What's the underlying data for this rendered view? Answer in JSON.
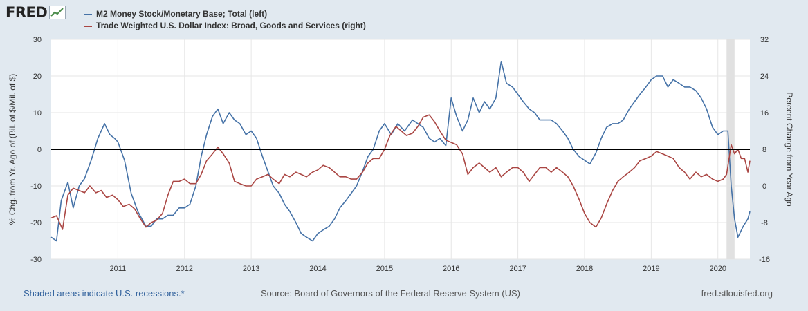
{
  "logo": {
    "text": "FRED",
    "icon": "fred-chart-icon"
  },
  "footer": {
    "recession_note": "Shaded areas indicate U.S. recessions.*",
    "source": "Source: Board of Governors of the Federal Reserve System (US)",
    "site": "fred.stlouisfed.org"
  },
  "chart_data": {
    "type": "line",
    "xlim": [
      2010.0,
      2020.48
    ],
    "x_ticks": [
      {
        "v": 2011,
        "label": "2011"
      },
      {
        "v": 2012,
        "label": "2012"
      },
      {
        "v": 2013,
        "label": "2013"
      },
      {
        "v": 2014,
        "label": "2014"
      },
      {
        "v": 2015,
        "label": "2015"
      },
      {
        "v": 2016,
        "label": "2016"
      },
      {
        "v": 2017,
        "label": "2017"
      },
      {
        "v": 2018,
        "label": "2018"
      },
      {
        "v": 2019,
        "label": "2019"
      },
      {
        "v": 2020,
        "label": "2020"
      }
    ],
    "left_axis": {
      "label": "% Chg. from Yr. Ago of (Bil. of $/Mil. of $)",
      "ylim": [
        -30,
        30
      ],
      "ticks": [
        {
          "v": 30,
          "label": "30"
        },
        {
          "v": 20,
          "label": "20"
        },
        {
          "v": 10,
          "label": "10"
        },
        {
          "v": 0,
          "label": "0"
        },
        {
          "v": -10,
          "label": "-10"
        },
        {
          "v": -20,
          "label": "-20"
        },
        {
          "v": -30,
          "label": "-30"
        }
      ]
    },
    "right_axis": {
      "label": "Percent Change from Year Ago",
      "ylim": [
        -16,
        32
      ],
      "ticks": [
        {
          "v": 32,
          "label": "32"
        },
        {
          "v": 24,
          "label": "24"
        },
        {
          "v": 16,
          "label": "16"
        },
        {
          "v": 8,
          "label": "8"
        },
        {
          "v": 0,
          "label": "0"
        },
        {
          "v": -8,
          "label": "-8"
        },
        {
          "v": -16,
          "label": "-16"
        }
      ]
    },
    "zero_line": 0,
    "recession_shading": [
      [
        2020.13,
        2020.25
      ]
    ],
    "grid": true,
    "series": [
      {
        "name": "M2 Money Stock/Monetary Base; Total (left)",
        "axis": "left",
        "color": "#4572a7",
        "points": [
          [
            2010.0,
            -24
          ],
          [
            2010.08,
            -25
          ],
          [
            2010.15,
            -14
          ],
          [
            2010.25,
            -9
          ],
          [
            2010.33,
            -16
          ],
          [
            2010.42,
            -10
          ],
          [
            2010.5,
            -8
          ],
          [
            2010.6,
            -3
          ],
          [
            2010.7,
            3
          ],
          [
            2010.8,
            7
          ],
          [
            2010.88,
            4
          ],
          [
            2010.95,
            3
          ],
          [
            2011.0,
            2
          ],
          [
            2011.1,
            -3
          ],
          [
            2011.2,
            -12
          ],
          [
            2011.3,
            -17
          ],
          [
            2011.42,
            -21
          ],
          [
            2011.5,
            -21
          ],
          [
            2011.58,
            -19
          ],
          [
            2011.67,
            -19
          ],
          [
            2011.75,
            -18
          ],
          [
            2011.83,
            -18
          ],
          [
            2011.92,
            -16
          ],
          [
            2012.0,
            -16
          ],
          [
            2012.08,
            -15
          ],
          [
            2012.17,
            -10
          ],
          [
            2012.25,
            -2
          ],
          [
            2012.33,
            4
          ],
          [
            2012.42,
            9
          ],
          [
            2012.5,
            11
          ],
          [
            2012.58,
            7
          ],
          [
            2012.67,
            10
          ],
          [
            2012.75,
            8
          ],
          [
            2012.83,
            7
          ],
          [
            2012.92,
            4
          ],
          [
            2013.0,
            5
          ],
          [
            2013.08,
            3
          ],
          [
            2013.17,
            -2
          ],
          [
            2013.25,
            -6
          ],
          [
            2013.33,
            -10
          ],
          [
            2013.42,
            -12
          ],
          [
            2013.5,
            -15
          ],
          [
            2013.58,
            -17
          ],
          [
            2013.67,
            -20
          ],
          [
            2013.75,
            -23
          ],
          [
            2013.83,
            -24
          ],
          [
            2013.92,
            -25
          ],
          [
            2014.0,
            -23
          ],
          [
            2014.08,
            -22
          ],
          [
            2014.17,
            -21
          ],
          [
            2014.25,
            -19
          ],
          [
            2014.33,
            -16
          ],
          [
            2014.42,
            -14
          ],
          [
            2014.5,
            -12
          ],
          [
            2014.58,
            -10
          ],
          [
            2014.67,
            -6
          ],
          [
            2014.75,
            -2
          ],
          [
            2014.83,
            0
          ],
          [
            2014.92,
            5
          ],
          [
            2015.0,
            7
          ],
          [
            2015.1,
            4
          ],
          [
            2015.2,
            7
          ],
          [
            2015.3,
            5
          ],
          [
            2015.42,
            8
          ],
          [
            2015.5,
            7
          ],
          [
            2015.58,
            6
          ],
          [
            2015.67,
            3
          ],
          [
            2015.75,
            2
          ],
          [
            2015.83,
            3
          ],
          [
            2015.92,
            1
          ],
          [
            2016.0,
            14
          ],
          [
            2016.08,
            9
          ],
          [
            2016.17,
            5
          ],
          [
            2016.25,
            8
          ],
          [
            2016.33,
            14
          ],
          [
            2016.42,
            10
          ],
          [
            2016.5,
            13
          ],
          [
            2016.58,
            11
          ],
          [
            2016.67,
            14
          ],
          [
            2016.75,
            24
          ],
          [
            2016.83,
            18
          ],
          [
            2016.92,
            17
          ],
          [
            2017.0,
            15
          ],
          [
            2017.08,
            13
          ],
          [
            2017.17,
            11
          ],
          [
            2017.25,
            10
          ],
          [
            2017.33,
            8
          ],
          [
            2017.42,
            8
          ],
          [
            2017.5,
            8
          ],
          [
            2017.58,
            7
          ],
          [
            2017.67,
            5
          ],
          [
            2017.75,
            3
          ],
          [
            2017.83,
            0
          ],
          [
            2017.92,
            -2
          ],
          [
            2018.0,
            -3
          ],
          [
            2018.08,
            -4
          ],
          [
            2018.17,
            -1
          ],
          [
            2018.25,
            3
          ],
          [
            2018.33,
            6
          ],
          [
            2018.42,
            7
          ],
          [
            2018.5,
            7
          ],
          [
            2018.58,
            8
          ],
          [
            2018.67,
            11
          ],
          [
            2018.75,
            13
          ],
          [
            2018.83,
            15
          ],
          [
            2018.92,
            17
          ],
          [
            2019.0,
            19
          ],
          [
            2019.08,
            20
          ],
          [
            2019.17,
            20
          ],
          [
            2019.25,
            17
          ],
          [
            2019.33,
            19
          ],
          [
            2019.42,
            18
          ],
          [
            2019.5,
            17
          ],
          [
            2019.58,
            17
          ],
          [
            2019.67,
            16
          ],
          [
            2019.75,
            14
          ],
          [
            2019.83,
            11
          ],
          [
            2019.92,
            6
          ],
          [
            2020.0,
            4
          ],
          [
            2020.08,
            5
          ],
          [
            2020.15,
            5
          ],
          [
            2020.2,
            -10
          ],
          [
            2020.25,
            -19
          ],
          [
            2020.3,
            -24
          ],
          [
            2020.38,
            -21
          ],
          [
            2020.45,
            -19
          ],
          [
            2020.48,
            -17
          ]
        ]
      },
      {
        "name": "Trade Weighted U.S. Dollar Index: Broad, Goods and Services (right)",
        "axis": "right",
        "color": "#aa4643",
        "points": [
          [
            2010.0,
            -7
          ],
          [
            2010.08,
            -6.5
          ],
          [
            2010.17,
            -9.5
          ],
          [
            2010.25,
            -2
          ],
          [
            2010.33,
            -0.5
          ],
          [
            2010.42,
            -1
          ],
          [
            2010.5,
            -1.5
          ],
          [
            2010.58,
            0
          ],
          [
            2010.67,
            -1.5
          ],
          [
            2010.75,
            -1
          ],
          [
            2010.83,
            -2.5
          ],
          [
            2010.92,
            -2
          ],
          [
            2011.0,
            -3
          ],
          [
            2011.08,
            -4.5
          ],
          [
            2011.17,
            -4
          ],
          [
            2011.25,
            -5
          ],
          [
            2011.33,
            -7
          ],
          [
            2011.42,
            -9
          ],
          [
            2011.5,
            -8
          ],
          [
            2011.58,
            -7.5
          ],
          [
            2011.67,
            -6
          ],
          [
            2011.75,
            -2
          ],
          [
            2011.83,
            1
          ],
          [
            2011.92,
            1
          ],
          [
            2012.0,
            1.5
          ],
          [
            2012.08,
            0.5
          ],
          [
            2012.17,
            0.5
          ],
          [
            2012.25,
            2.5
          ],
          [
            2012.33,
            5.5
          ],
          [
            2012.42,
            7
          ],
          [
            2012.5,
            8.5
          ],
          [
            2012.58,
            7
          ],
          [
            2012.67,
            5
          ],
          [
            2012.75,
            1
          ],
          [
            2012.83,
            0.5
          ],
          [
            2012.92,
            0
          ],
          [
            2013.0,
            0
          ],
          [
            2013.08,
            1.5
          ],
          [
            2013.17,
            2
          ],
          [
            2013.25,
            2.5
          ],
          [
            2013.33,
            1.5
          ],
          [
            2013.42,
            0.5
          ],
          [
            2013.5,
            2.5
          ],
          [
            2013.58,
            2
          ],
          [
            2013.67,
            3
          ],
          [
            2013.75,
            2.5
          ],
          [
            2013.83,
            2
          ],
          [
            2013.92,
            3
          ],
          [
            2014.0,
            3.5
          ],
          [
            2014.08,
            4.5
          ],
          [
            2014.17,
            4
          ],
          [
            2014.25,
            3
          ],
          [
            2014.33,
            2
          ],
          [
            2014.42,
            2
          ],
          [
            2014.5,
            1.5
          ],
          [
            2014.58,
            1.5
          ],
          [
            2014.67,
            3
          ],
          [
            2014.75,
            5
          ],
          [
            2014.83,
            6
          ],
          [
            2014.92,
            6
          ],
          [
            2015.0,
            8
          ],
          [
            2015.08,
            11
          ],
          [
            2015.17,
            13
          ],
          [
            2015.25,
            12
          ],
          [
            2015.33,
            11
          ],
          [
            2015.42,
            11.5
          ],
          [
            2015.5,
            13
          ],
          [
            2015.58,
            15
          ],
          [
            2015.67,
            15.5
          ],
          [
            2015.75,
            14
          ],
          [
            2015.83,
            12
          ],
          [
            2015.92,
            10
          ],
          [
            2016.0,
            9.5
          ],
          [
            2016.08,
            9
          ],
          [
            2016.17,
            7
          ],
          [
            2016.25,
            2.5
          ],
          [
            2016.33,
            4
          ],
          [
            2016.42,
            5
          ],
          [
            2016.5,
            4
          ],
          [
            2016.58,
            3
          ],
          [
            2016.67,
            4
          ],
          [
            2016.75,
            2
          ],
          [
            2016.83,
            3
          ],
          [
            2016.92,
            4
          ],
          [
            2017.0,
            4
          ],
          [
            2017.08,
            3
          ],
          [
            2017.17,
            1
          ],
          [
            2017.25,
            2.5
          ],
          [
            2017.33,
            4
          ],
          [
            2017.42,
            4
          ],
          [
            2017.5,
            3
          ],
          [
            2017.58,
            4
          ],
          [
            2017.67,
            3
          ],
          [
            2017.75,
            2
          ],
          [
            2017.83,
            0
          ],
          [
            2017.92,
            -3
          ],
          [
            2018.0,
            -6
          ],
          [
            2018.08,
            -8
          ],
          [
            2018.17,
            -9
          ],
          [
            2018.25,
            -7
          ],
          [
            2018.33,
            -4
          ],
          [
            2018.42,
            -1
          ],
          [
            2018.5,
            1
          ],
          [
            2018.58,
            2
          ],
          [
            2018.67,
            3
          ],
          [
            2018.75,
            4
          ],
          [
            2018.83,
            5.5
          ],
          [
            2018.92,
            6
          ],
          [
            2019.0,
            6.5
          ],
          [
            2019.08,
            7.5
          ],
          [
            2019.17,
            7
          ],
          [
            2019.25,
            6.5
          ],
          [
            2019.33,
            6
          ],
          [
            2019.42,
            4
          ],
          [
            2019.5,
            3
          ],
          [
            2019.58,
            1.5
          ],
          [
            2019.67,
            3
          ],
          [
            2019.75,
            2
          ],
          [
            2019.83,
            2.5
          ],
          [
            2019.92,
            1.5
          ],
          [
            2020.0,
            1
          ],
          [
            2020.08,
            1.5
          ],
          [
            2020.13,
            2.5
          ],
          [
            2020.2,
            9
          ],
          [
            2020.25,
            7
          ],
          [
            2020.3,
            8
          ],
          [
            2020.35,
            6
          ],
          [
            2020.4,
            6
          ],
          [
            2020.45,
            3
          ],
          [
            2020.48,
            5.5
          ]
        ]
      }
    ]
  }
}
